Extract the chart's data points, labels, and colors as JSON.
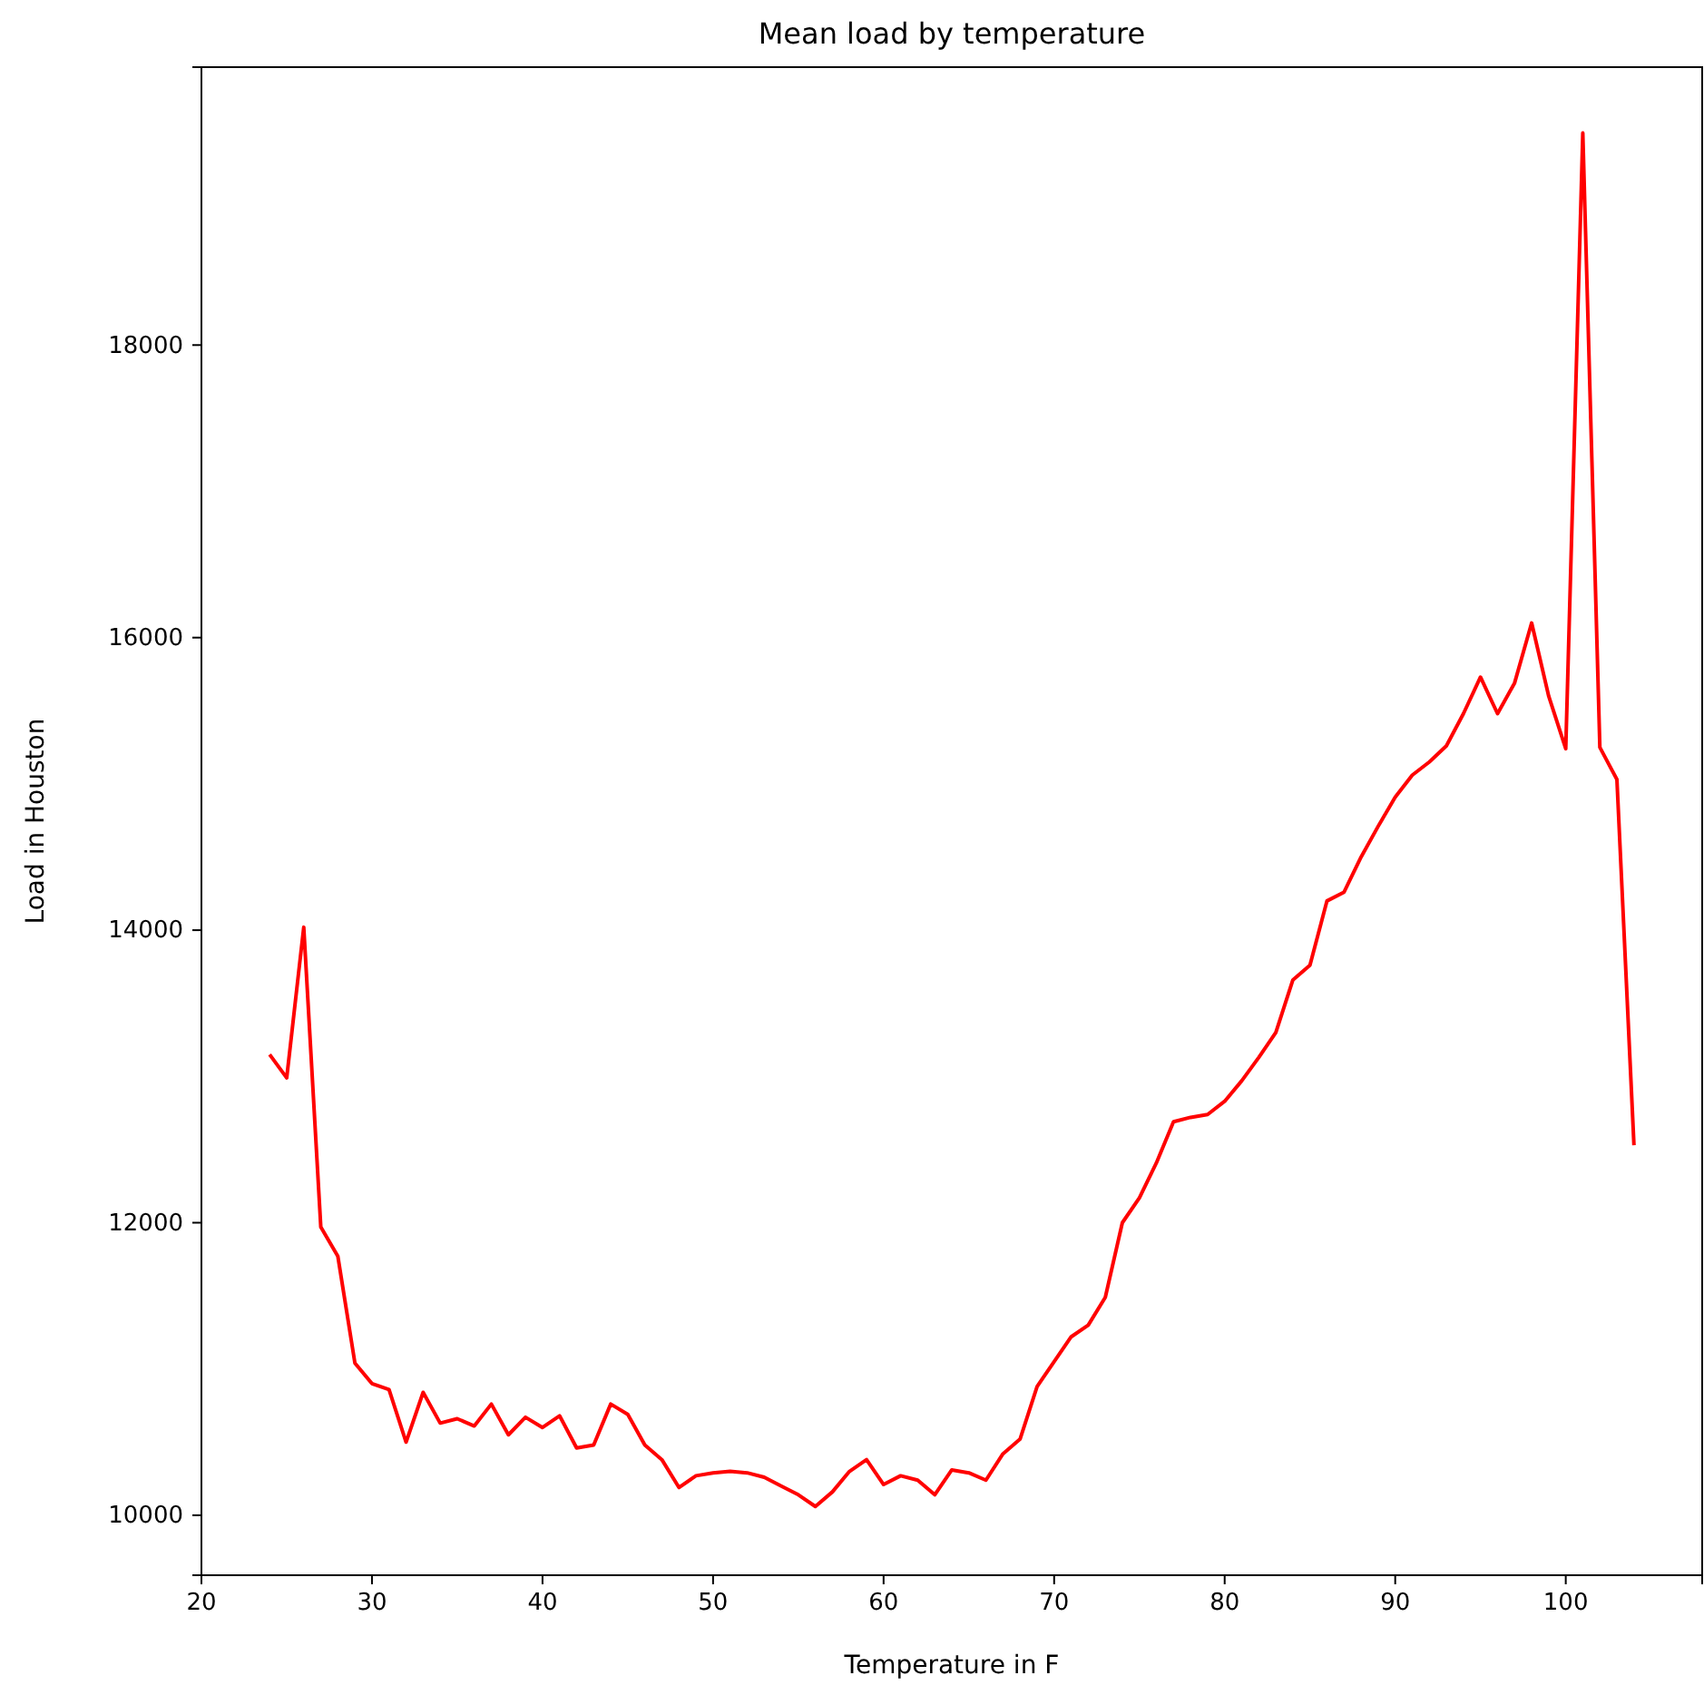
{
  "chart_data": {
    "type": "line",
    "title": "Mean load by temperature",
    "xlabel": "Temperature in F",
    "ylabel": "Load in Houston",
    "x": [
      24,
      25,
      26,
      27,
      28,
      29,
      30,
      31,
      32,
      33,
      34,
      35,
      36,
      37,
      38,
      39,
      40,
      41,
      42,
      43,
      44,
      45,
      46,
      47,
      48,
      49,
      50,
      51,
      52,
      53,
      54,
      55,
      56,
      57,
      58,
      59,
      60,
      61,
      62,
      63,
      64,
      65,
      66,
      67,
      68,
      69,
      70,
      71,
      72,
      73,
      74,
      75,
      76,
      77,
      78,
      79,
      80,
      81,
      82,
      83,
      84,
      85,
      86,
      87,
      88,
      89,
      90,
      91,
      92,
      93,
      94,
      95,
      96,
      97,
      98,
      99,
      100,
      101,
      102,
      103,
      104
    ],
    "series": [
      {
        "color": "#ff0000",
        "values": [
          13150,
          12990,
          14020,
          11970,
          11770,
          11040,
          10900,
          10860,
          10500,
          10840,
          10630,
          10660,
          10610,
          10760,
          10550,
          10670,
          10600,
          10680,
          10460,
          10480,
          10760,
          10690,
          10480,
          10380,
          10190,
          10270,
          10290,
          10300,
          10290,
          10260,
          10200,
          10140,
          10060,
          10160,
          10300,
          10380,
          10210,
          10270,
          10240,
          10140,
          10310,
          10290,
          10240,
          10420,
          10520,
          10880,
          11050,
          11220,
          11300,
          11490,
          12000,
          12170,
          12410,
          12690,
          12720,
          12740,
          12830,
          12970,
          13130,
          13300,
          13660,
          13760,
          14200,
          14260,
          14500,
          14710,
          14910,
          15060,
          15150,
          15260,
          15480,
          15730,
          15480,
          15690,
          16100,
          15600,
          15240,
          19450,
          15250,
          15030,
          12530
        ]
      }
    ],
    "xlim": [
      20,
      108
    ],
    "xticks": [
      20,
      30,
      40,
      50,
      60,
      70,
      80,
      90,
      100
    ],
    "ylim": [
      9590,
      19900
    ],
    "yticks": [
      10000,
      12000,
      14000,
      16000,
      18000
    ],
    "grid": false
  }
}
